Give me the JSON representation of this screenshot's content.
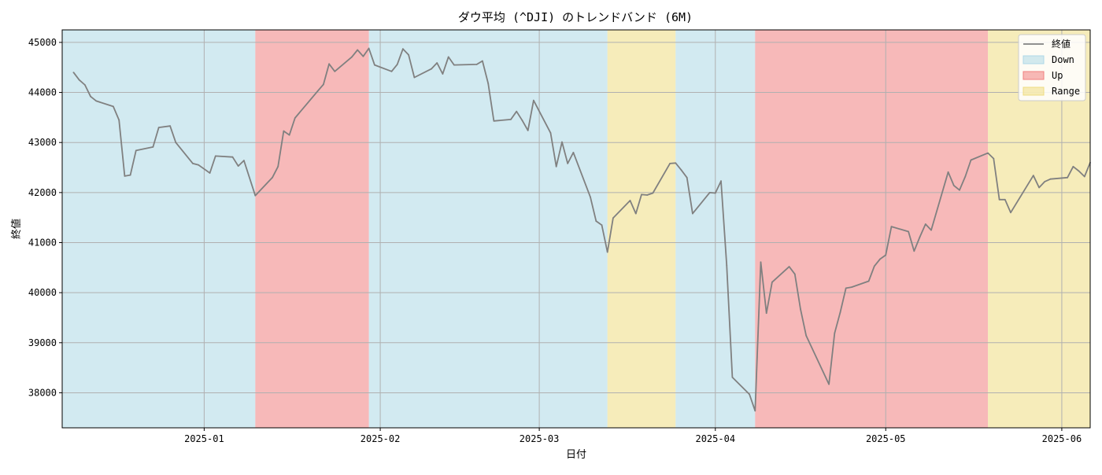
{
  "chart_data": {
    "type": "line",
    "title": "ダウ平均 (^DJI) のトレンドバンド (6M)",
    "xlabel": "日付",
    "ylabel": "終値",
    "xlim": [
      "2024-12-07",
      "2025-06-06"
    ],
    "ylim": [
      37300,
      45250
    ],
    "grid": true,
    "legend_position": "top-right",
    "x_ticks": [
      {
        "date": "2025-01-01",
        "label": "2025-01"
      },
      {
        "date": "2025-02-01",
        "label": "2025-02"
      },
      {
        "date": "2025-03-01",
        "label": "2025-03"
      },
      {
        "date": "2025-04-01",
        "label": "2025-04"
      },
      {
        "date": "2025-05-01",
        "label": "2025-05"
      },
      {
        "date": "2025-06-01",
        "label": "2025-06"
      }
    ],
    "y_ticks": [
      38000,
      39000,
      40000,
      41000,
      42000,
      43000,
      44000,
      45000
    ],
    "series": [
      {
        "name": "終値",
        "color": "#808080",
        "points": [
          [
            "2024-12-09",
            44400
          ],
          [
            "2024-12-10",
            44250
          ],
          [
            "2024-12-11",
            44150
          ],
          [
            "2024-12-12",
            43920
          ],
          [
            "2024-12-13",
            43830
          ],
          [
            "2024-12-16",
            43720
          ],
          [
            "2024-12-17",
            43450
          ],
          [
            "2024-12-18",
            42330
          ],
          [
            "2024-12-19",
            42350
          ],
          [
            "2024-12-20",
            42840
          ],
          [
            "2024-12-23",
            42910
          ],
          [
            "2024-12-24",
            43300
          ],
          [
            "2024-12-26",
            43330
          ],
          [
            "2024-12-27",
            43000
          ],
          [
            "2024-12-30",
            42580
          ],
          [
            "2024-12-31",
            42550
          ],
          [
            "2025-01-02",
            42390
          ],
          [
            "2025-01-03",
            42730
          ],
          [
            "2025-01-06",
            42710
          ],
          [
            "2025-01-07",
            42530
          ],
          [
            "2025-01-08",
            42640
          ],
          [
            "2025-01-10",
            41940
          ],
          [
            "2025-01-13",
            42300
          ],
          [
            "2025-01-14",
            42520
          ],
          [
            "2025-01-15",
            43230
          ],
          [
            "2025-01-16",
            43150
          ],
          [
            "2025-01-17",
            43490
          ],
          [
            "2025-01-21",
            44030
          ],
          [
            "2025-01-22",
            44160
          ],
          [
            "2025-01-23",
            44570
          ],
          [
            "2025-01-24",
            44420
          ],
          [
            "2025-01-27",
            44710
          ],
          [
            "2025-01-28",
            44850
          ],
          [
            "2025-01-29",
            44720
          ],
          [
            "2025-01-30",
            44880
          ],
          [
            "2025-01-31",
            44550
          ],
          [
            "2025-02-03",
            44420
          ],
          [
            "2025-02-04",
            44560
          ],
          [
            "2025-02-05",
            44870
          ],
          [
            "2025-02-06",
            44750
          ],
          [
            "2025-02-07",
            44300
          ],
          [
            "2025-02-10",
            44470
          ],
          [
            "2025-02-11",
            44590
          ],
          [
            "2025-02-12",
            44370
          ],
          [
            "2025-02-13",
            44710
          ],
          [
            "2025-02-14",
            44550
          ],
          [
            "2025-02-18",
            44560
          ],
          [
            "2025-02-19",
            44630
          ],
          [
            "2025-02-20",
            44180
          ],
          [
            "2025-02-21",
            43430
          ],
          [
            "2025-02-24",
            43460
          ],
          [
            "2025-02-25",
            43620
          ],
          [
            "2025-02-26",
            43440
          ],
          [
            "2025-02-27",
            43240
          ],
          [
            "2025-02-28",
            43840
          ],
          [
            "2025-03-03",
            43190
          ],
          [
            "2025-03-04",
            42520
          ],
          [
            "2025-03-05",
            43010
          ],
          [
            "2025-03-06",
            42580
          ],
          [
            "2025-03-07",
            42800
          ],
          [
            "2025-03-10",
            41910
          ],
          [
            "2025-03-11",
            41430
          ],
          [
            "2025-03-12",
            41350
          ],
          [
            "2025-03-13",
            40810
          ],
          [
            "2025-03-14",
            41490
          ],
          [
            "2025-03-17",
            41840
          ],
          [
            "2025-03-18",
            41580
          ],
          [
            "2025-03-19",
            41960
          ],
          [
            "2025-03-20",
            41950
          ],
          [
            "2025-03-21",
            41990
          ],
          [
            "2025-03-24",
            42580
          ],
          [
            "2025-03-25",
            42590
          ],
          [
            "2025-03-26",
            42450
          ],
          [
            "2025-03-27",
            42300
          ],
          [
            "2025-03-28",
            41580
          ],
          [
            "2025-03-31",
            42000
          ],
          [
            "2025-04-01",
            41990
          ],
          [
            "2025-04-02",
            42230
          ],
          [
            "2025-04-03",
            40550
          ],
          [
            "2025-04-04",
            38310
          ],
          [
            "2025-04-07",
            37970
          ],
          [
            "2025-04-08",
            37640
          ],
          [
            "2025-04-09",
            40610
          ],
          [
            "2025-04-10",
            39590
          ],
          [
            "2025-04-11",
            40210
          ],
          [
            "2025-04-14",
            40520
          ],
          [
            "2025-04-15",
            40370
          ],
          [
            "2025-04-16",
            39670
          ],
          [
            "2025-04-17",
            39140
          ],
          [
            "2025-04-21",
            38170
          ],
          [
            "2025-04-22",
            39190
          ],
          [
            "2025-04-23",
            39610
          ],
          [
            "2025-04-24",
            40090
          ],
          [
            "2025-04-25",
            40110
          ],
          [
            "2025-04-28",
            40230
          ],
          [
            "2025-04-29",
            40530
          ],
          [
            "2025-04-30",
            40670
          ],
          [
            "2025-05-01",
            40750
          ],
          [
            "2025-05-02",
            41320
          ],
          [
            "2025-05-05",
            41220
          ],
          [
            "2025-05-06",
            40830
          ],
          [
            "2025-05-07",
            41110
          ],
          [
            "2025-05-08",
            41370
          ],
          [
            "2025-05-09",
            41250
          ],
          [
            "2025-05-12",
            42410
          ],
          [
            "2025-05-13",
            42140
          ],
          [
            "2025-05-14",
            42050
          ],
          [
            "2025-05-15",
            42320
          ],
          [
            "2025-05-16",
            42650
          ],
          [
            "2025-05-19",
            42790
          ],
          [
            "2025-05-20",
            42680
          ],
          [
            "2025-05-21",
            41860
          ],
          [
            "2025-05-22",
            41860
          ],
          [
            "2025-05-23",
            41600
          ],
          [
            "2025-05-27",
            42340
          ],
          [
            "2025-05-28",
            42100
          ],
          [
            "2025-05-29",
            42220
          ],
          [
            "2025-05-30",
            42270
          ],
          [
            "2025-06-02",
            42300
          ],
          [
            "2025-06-03",
            42520
          ],
          [
            "2025-06-04",
            42430
          ],
          [
            "2025-06-05",
            42320
          ],
          [
            "2025-06-06",
            42600
          ]
        ]
      }
    ],
    "bands": [
      {
        "label": "Down",
        "start": "2024-12-07",
        "end": "2025-01-10"
      },
      {
        "label": "Up",
        "start": "2025-01-10",
        "end": "2025-01-30"
      },
      {
        "label": "Down",
        "start": "2025-01-30",
        "end": "2025-03-13"
      },
      {
        "label": "Range",
        "start": "2025-03-13",
        "end": "2025-03-25"
      },
      {
        "label": "Down",
        "start": "2025-03-25",
        "end": "2025-04-08"
      },
      {
        "label": "Up",
        "start": "2025-04-08",
        "end": "2025-05-19"
      },
      {
        "label": "Range",
        "start": "2025-05-19",
        "end": "2025-06-06"
      }
    ],
    "band_colors": {
      "Down": "#add8e6",
      "Up": "#f08080",
      "Range": "#eedd82"
    },
    "legend": [
      {
        "kind": "line",
        "label": "終値",
        "color": "#808080"
      },
      {
        "kind": "patch",
        "label": "Down",
        "color": "#add8e6"
      },
      {
        "kind": "patch",
        "label": "Up",
        "color": "#f08080"
      },
      {
        "kind": "patch",
        "label": "Range",
        "color": "#eedd82"
      }
    ]
  }
}
